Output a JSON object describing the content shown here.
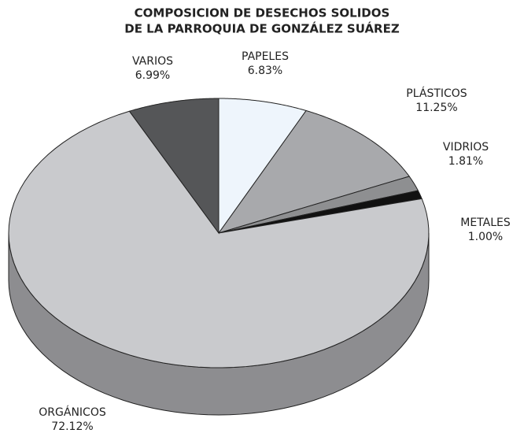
{
  "chart_data": {
    "type": "pie",
    "title": [
      "COMPOSICION DE DESECHOS SOLIDOS",
      "DE LA PARROQUIA DE GONZÁLEZ SUÁREZ"
    ],
    "categories": [
      "PAPELES",
      "PLÁSTICOS",
      "VIDRIOS",
      "METALES",
      "ORGÁNICOS",
      "VARIOS"
    ],
    "values": [
      6.83,
      11.25,
      1.81,
      1.0,
      72.12,
      6.99
    ],
    "value_labels": [
      "6.83%",
      "11.25%",
      "1.81%",
      "1.00%",
      "72.12%",
      "6.99%"
    ],
    "colors": [
      "#eef5fc",
      "#a8a9ac",
      "#8e8f91",
      "#111111",
      "#c9cacd",
      "#555658"
    ]
  }
}
